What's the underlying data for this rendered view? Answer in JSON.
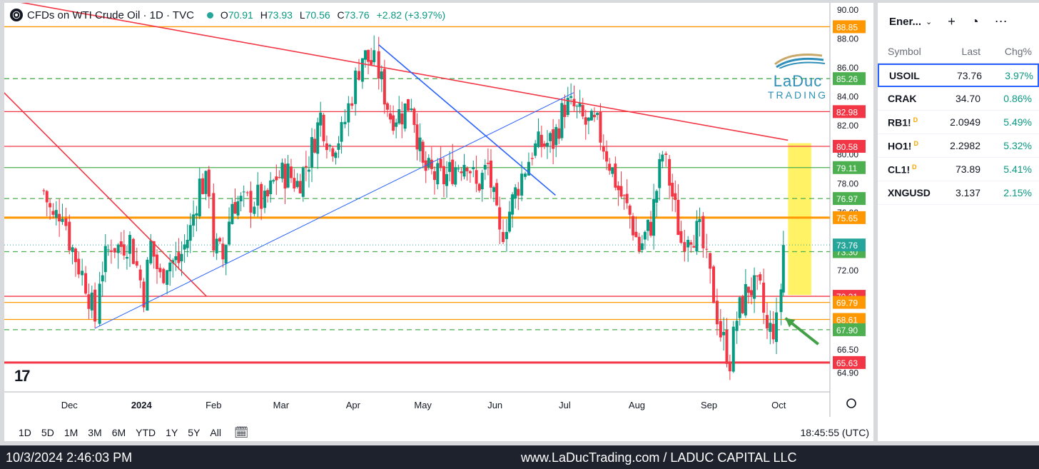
{
  "header": {
    "logo": "⦿",
    "title": "CFDs on WTI Crude Oil · 1D · TVC",
    "open_label": "O",
    "open": "70.91",
    "high_label": "H",
    "high": "73.93",
    "low_label": "L",
    "low": "70.56",
    "close_label": "C",
    "close": "73.76",
    "change": "+2.82 (+3.97%)"
  },
  "branding": {
    "tv_logo": "17",
    "laduc_1": "LaDuc",
    "laduc_2": "TRADING"
  },
  "colors": {
    "up": "#089981",
    "down": "#f23645",
    "green_line": "#4caf50",
    "orange_line": "#ff9800",
    "red_line": "#f23645",
    "blue_line": "#2962ff",
    "highlight": "#fff04a"
  },
  "chart_data": {
    "type": "candlestick",
    "ylim": [
      63.6,
      90.5
    ],
    "x_ticks": [
      "Dec",
      "2024",
      "Feb",
      "Mar",
      "Apr",
      "May",
      "Jun",
      "Jul",
      "Aug",
      "Sep",
      "Oct"
    ],
    "y_ticks": [
      "90.00",
      "88.00",
      "86.00",
      "84.00",
      "82.00",
      "80.00",
      "78.00",
      "76.00",
      "72.00",
      "66.50",
      "64.90"
    ],
    "close_series": [
      {
        "date": "2023-11-20",
        "close": 77.5
      },
      {
        "date": "2023-11-24",
        "close": 75.5
      },
      {
        "date": "2023-11-28",
        "close": 76.4
      },
      {
        "date": "2023-12-01",
        "close": 74.1
      },
      {
        "date": "2023-12-05",
        "close": 72.3
      },
      {
        "date": "2023-12-08",
        "close": 71.2
      },
      {
        "date": "2023-12-12",
        "close": 68.6
      },
      {
        "date": "2023-12-14",
        "close": 71.6
      },
      {
        "date": "2023-12-19",
        "close": 73.9
      },
      {
        "date": "2023-12-22",
        "close": 73.6
      },
      {
        "date": "2023-12-27",
        "close": 74.1
      },
      {
        "date": "2024-01-02",
        "close": 70.4
      },
      {
        "date": "2024-01-05",
        "close": 73.8
      },
      {
        "date": "2024-01-09",
        "close": 71.4
      },
      {
        "date": "2024-01-12",
        "close": 72.7
      },
      {
        "date": "2024-01-17",
        "close": 72.6
      },
      {
        "date": "2024-01-22",
        "close": 74.8
      },
      {
        "date": "2024-01-26",
        "close": 78.0
      },
      {
        "date": "2024-01-30",
        "close": 77.8
      },
      {
        "date": "2024-02-01",
        "close": 73.8
      },
      {
        "date": "2024-02-05",
        "close": 72.8
      },
      {
        "date": "2024-02-09",
        "close": 76.8
      },
      {
        "date": "2024-02-14",
        "close": 76.6
      },
      {
        "date": "2024-02-20",
        "close": 77.0
      },
      {
        "date": "2024-02-23",
        "close": 76.5
      },
      {
        "date": "2024-02-28",
        "close": 78.5
      },
      {
        "date": "2024-03-04",
        "close": 78.7
      },
      {
        "date": "2024-03-08",
        "close": 78.0
      },
      {
        "date": "2024-03-13",
        "close": 79.7
      },
      {
        "date": "2024-03-18",
        "close": 82.7
      },
      {
        "date": "2024-03-22",
        "close": 80.6
      },
      {
        "date": "2024-03-27",
        "close": 81.4
      },
      {
        "date": "2024-04-02",
        "close": 85.2
      },
      {
        "date": "2024-04-05",
        "close": 86.9
      },
      {
        "date": "2024-04-10",
        "close": 86.2
      },
      {
        "date": "2024-04-12",
        "close": 85.7
      },
      {
        "date": "2024-04-17",
        "close": 82.7
      },
      {
        "date": "2024-04-22",
        "close": 82.9
      },
      {
        "date": "2024-04-26",
        "close": 83.8
      },
      {
        "date": "2024-05-01",
        "close": 79.0
      },
      {
        "date": "2024-05-06",
        "close": 78.5
      },
      {
        "date": "2024-05-10",
        "close": 78.3
      },
      {
        "date": "2024-05-15",
        "close": 79.2
      },
      {
        "date": "2024-05-20",
        "close": 79.8
      },
      {
        "date": "2024-05-24",
        "close": 77.7
      },
      {
        "date": "2024-05-29",
        "close": 79.2
      },
      {
        "date": "2024-06-03",
        "close": 74.2
      },
      {
        "date": "2024-06-06",
        "close": 75.5
      },
      {
        "date": "2024-06-11",
        "close": 78.0
      },
      {
        "date": "2024-06-17",
        "close": 80.3
      },
      {
        "date": "2024-06-21",
        "close": 80.7
      },
      {
        "date": "2024-06-26",
        "close": 80.9
      },
      {
        "date": "2024-07-01",
        "close": 83.4
      },
      {
        "date": "2024-07-05",
        "close": 83.2
      },
      {
        "date": "2024-07-10",
        "close": 82.1
      },
      {
        "date": "2024-07-15",
        "close": 81.9
      },
      {
        "date": "2024-07-19",
        "close": 80.1
      },
      {
        "date": "2024-07-24",
        "close": 77.6
      },
      {
        "date": "2024-07-29",
        "close": 75.8
      },
      {
        "date": "2024-08-02",
        "close": 73.5
      },
      {
        "date": "2024-08-07",
        "close": 75.2
      },
      {
        "date": "2024-08-12",
        "close": 80.1
      },
      {
        "date": "2024-08-15",
        "close": 78.2
      },
      {
        "date": "2024-08-20",
        "close": 74.0
      },
      {
        "date": "2024-08-23",
        "close": 74.8
      },
      {
        "date": "2024-08-28",
        "close": 74.5
      },
      {
        "date": "2024-09-03",
        "close": 70.3
      },
      {
        "date": "2024-09-06",
        "close": 67.7
      },
      {
        "date": "2024-09-10",
        "close": 65.8
      },
      {
        "date": "2024-09-13",
        "close": 68.7
      },
      {
        "date": "2024-09-18",
        "close": 70.9
      },
      {
        "date": "2024-09-23",
        "close": 70.4
      },
      {
        "date": "2024-09-26",
        "close": 67.7
      },
      {
        "date": "2024-09-30",
        "close": 68.2
      },
      {
        "date": "2024-10-02",
        "close": 70.9
      },
      {
        "date": "2024-10-03",
        "close": 73.76
      }
    ],
    "levels": [
      {
        "value": "88.85",
        "color": "#ff9800",
        "style": "solid"
      },
      {
        "value": "85.26",
        "color": "#4caf50",
        "style": "dashed"
      },
      {
        "value": "82.98",
        "color": "#f23645",
        "style": "solid"
      },
      {
        "value": "80.58",
        "color": "#f23645",
        "style": "solid"
      },
      {
        "value": "79.11",
        "color": "#4caf50",
        "style": "solid"
      },
      {
        "value": "76.97",
        "color": "#4caf50",
        "style": "dashed"
      },
      {
        "value": "75.65",
        "color": "#ff9800",
        "style": "thick"
      },
      {
        "value": "73.30",
        "color": "#4caf50",
        "style": "dashed"
      },
      {
        "value": "70.21",
        "color": "#f23645",
        "style": "solid"
      },
      {
        "value": "69.79",
        "color": "#ff9800",
        "style": "solid"
      },
      {
        "value": "68.61",
        "color": "#ff9800",
        "style": "solid"
      },
      {
        "value": "67.90",
        "color": "#4caf50",
        "style": "dashed"
      },
      {
        "value": "65.63",
        "color": "#f23645",
        "style": "thick"
      }
    ],
    "last_price": "73.76",
    "trendlines": [
      {
        "color": "#f23645",
        "from": {
          "date": "2023-11-01",
          "price": 90.8
        },
        "to": {
          "date": "2024-10-05",
          "price": 81.0
        }
      },
      {
        "color": "#f23645",
        "from": {
          "date": "2023-11-01",
          "price": 84.6
        },
        "to": {
          "date": "2024-01-29",
          "price": 70.2
        }
      },
      {
        "color": "#2962ff",
        "from": {
          "date": "2023-12-12",
          "price": 68.0
        },
        "to": {
          "date": "2024-07-05",
          "price": 84.3
        }
      },
      {
        "color": "#2962ff",
        "from": {
          "date": "2024-04-12",
          "price": 87.6
        },
        "to": {
          "date": "2024-06-27",
          "price": 77.2
        }
      }
    ],
    "highlight_zone": {
      "from_date": "2024-10-05",
      "to_date": "2024-10-15",
      "top": 80.8,
      "bottom": 70.3
    },
    "arrow": {
      "tip_date": "2024-10-02",
      "tip_price": 68.7,
      "tail_date": "2024-10-18",
      "tail_price": 66.9
    }
  },
  "bottom_bar": {
    "timeframes": [
      "1D",
      "5D",
      "1M",
      "3M",
      "6M",
      "YTD",
      "1Y",
      "5Y",
      "All"
    ],
    "clock": "18:45:55 (UTC)"
  },
  "watchlist": {
    "title": "Ener...",
    "col_symbol": "Symbol",
    "col_last": "Last",
    "col_chg": "Chg%",
    "rows": [
      {
        "symbol": "USOIL",
        "badge": "",
        "last": "73.76",
        "chg": "3.97%"
      },
      {
        "symbol": "CRAK",
        "badge": "",
        "last": "34.70",
        "chg": "0.86%"
      },
      {
        "symbol": "RB1!",
        "badge": "D",
        "last": "2.0949",
        "chg": "5.49%"
      },
      {
        "symbol": "HO1!",
        "badge": "D",
        "last": "2.2982",
        "chg": "5.32%"
      },
      {
        "symbol": "CL1!",
        "badge": "D",
        "last": "73.89",
        "chg": "5.41%"
      },
      {
        "symbol": "XNGUSD",
        "badge": "",
        "last": "3.137",
        "chg": "2.15%"
      }
    ]
  },
  "status_bar": {
    "timestamp": "10/3/2024 2:46:03 PM",
    "site": "www.LaDucTrading.com / LADUC CAPITAL LLC"
  }
}
